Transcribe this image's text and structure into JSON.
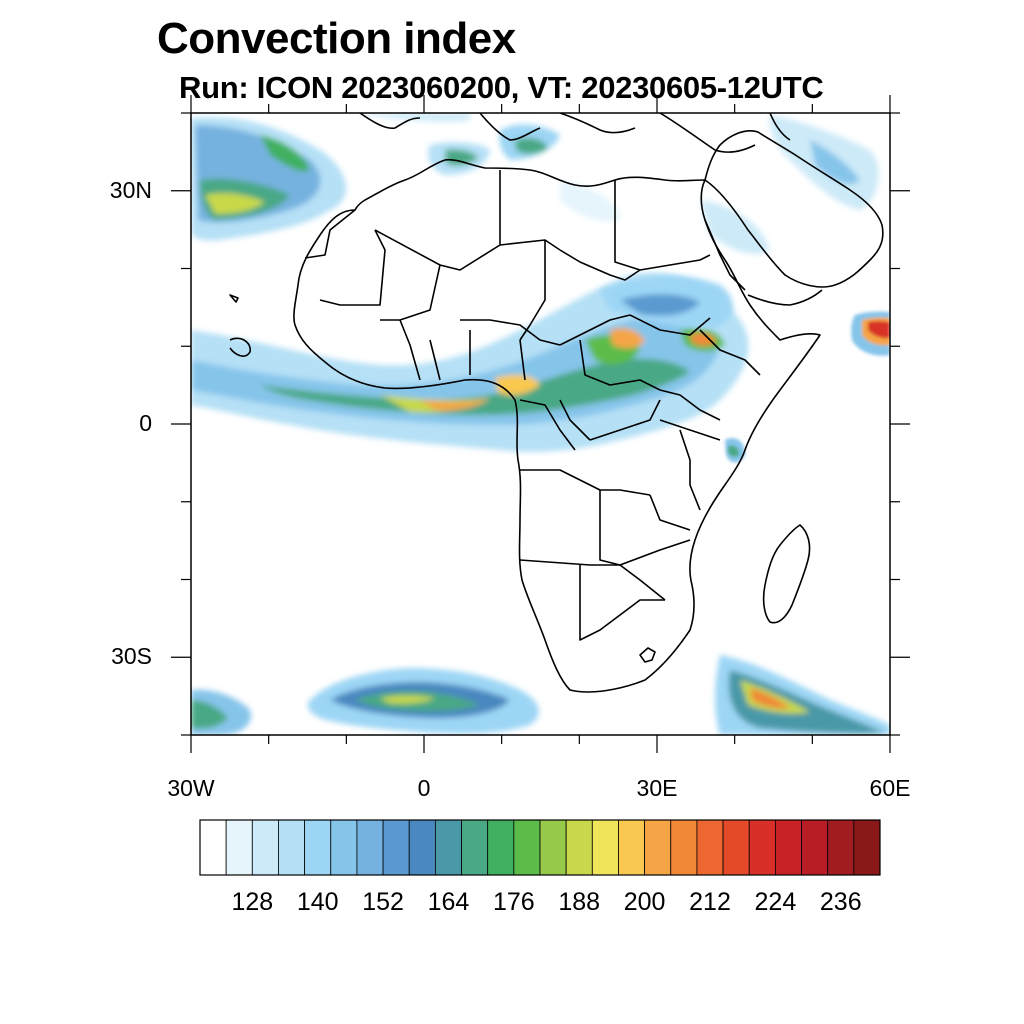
{
  "title": "Convection index",
  "subtitle": "Run: ICON 2023060200,  VT: 20230605-12UTC",
  "axes": {
    "lat_ticks": [
      {
        "label": "30N",
        "value": 30
      },
      {
        "label": "0",
        "value": 0
      },
      {
        "label": "30S",
        "value": -30
      }
    ],
    "lon_ticks": [
      {
        "label": "30W",
        "value": -30
      },
      {
        "label": "0",
        "value": 0
      },
      {
        "label": "30E",
        "value": 30
      },
      {
        "label": "60E",
        "value": 60
      }
    ],
    "lon_range": [
      -30,
      60
    ],
    "lat_range": [
      -40,
      40
    ]
  },
  "colorbar": {
    "labels": [
      "128",
      "140",
      "152",
      "164",
      "176",
      "188",
      "200",
      "212",
      "224",
      "236"
    ],
    "colors": [
      "#ffffff",
      "#e6f5fc",
      "#cdeaf8",
      "#b5e0f6",
      "#9dd6f5",
      "#86c5ea",
      "#76b2e0",
      "#5a9ad0",
      "#4a88c0",
      "#4a98a8",
      "#4aa885",
      "#3fb060",
      "#5cbc4a",
      "#96c84a",
      "#c8d84a",
      "#f0e45a",
      "#f8c850",
      "#f5a545",
      "#f08838",
      "#ec6830",
      "#e44a2a",
      "#d83028",
      "#c82226",
      "#b81c24",
      "#a01c20",
      "#8a1818"
    ]
  }
}
